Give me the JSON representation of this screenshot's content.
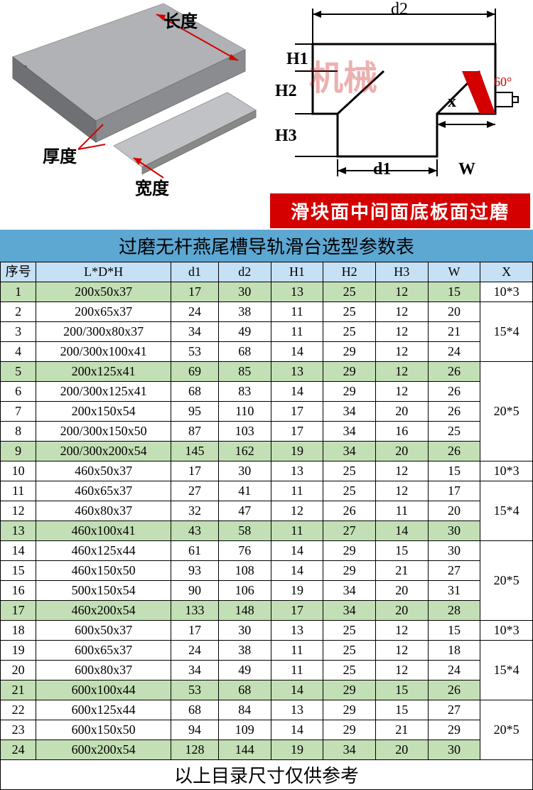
{
  "diagram_left": {
    "label_length": "长度",
    "label_thickness": "厚度",
    "label_width": "宽度"
  },
  "diagram_right": {
    "watermark": "机械",
    "label_d1": "d1",
    "label_d2": "d2",
    "label_H1": "H1",
    "label_H2": "H2",
    "label_H3": "H3",
    "label_W": "W",
    "label_x": "x",
    "label_angle": "60°",
    "red_text": "滑块面中间面底板面过磨"
  },
  "table": {
    "title": "过磨无杆燕尾槽导轨滑台选型参数表",
    "columns": [
      "序号",
      "L*D*H",
      "d1",
      "d2",
      "H1",
      "H2",
      "H3",
      "W",
      "X"
    ],
    "col_widths": [
      "45",
      "170",
      "60",
      "66",
      "66",
      "66",
      "66",
      "66",
      "66"
    ],
    "header_bg": "#c6e0f5",
    "row_green": "#c3dfb5",
    "row_white": "#ffffff",
    "rows": [
      {
        "n": 1,
        "ldh": "200x50x37",
        "d1": "17",
        "d2": "30",
        "H1": "13",
        "H2": "25",
        "H3": "12",
        "W": "15",
        "X": "10*3",
        "g": 1,
        "xspan": 1
      },
      {
        "n": 2,
        "ldh": "200x65x37",
        "d1": "24",
        "d2": "38",
        "H1": "11",
        "H2": "25",
        "H3": "12",
        "W": "20",
        "X": "15*4",
        "g": 0,
        "xspan": 3
      },
      {
        "n": 3,
        "ldh": "200/300x80x37",
        "d1": "34",
        "d2": "49",
        "H1": "11",
        "H2": "25",
        "H3": "12",
        "W": "21",
        "g": 0
      },
      {
        "n": 4,
        "ldh": "200/300x100x41",
        "d1": "53",
        "d2": "68",
        "H1": "14",
        "H2": "29",
        "H3": "12",
        "W": "24",
        "g": 0
      },
      {
        "n": 5,
        "ldh": "200x125x41",
        "d1": "69",
        "d2": "85",
        "H1": "13",
        "H2": "29",
        "H3": "12",
        "W": "26",
        "X": "20*5",
        "g": 1,
        "xspan": 5
      },
      {
        "n": 6,
        "ldh": "200/300x125x41",
        "d1": "68",
        "d2": "83",
        "H1": "14",
        "H2": "29",
        "H3": "12",
        "W": "26",
        "g": 0
      },
      {
        "n": 7,
        "ldh": "200x150x54",
        "d1": "95",
        "d2": "110",
        "H1": "17",
        "H2": "34",
        "H3": "20",
        "W": "26",
        "g": 0
      },
      {
        "n": 8,
        "ldh": "200/300x150x50",
        "d1": "87",
        "d2": "103",
        "H1": "17",
        "H2": "34",
        "H3": "16",
        "W": "25",
        "g": 0
      },
      {
        "n": 9,
        "ldh": "200/300x200x54",
        "d1": "145",
        "d2": "162",
        "H1": "19",
        "H2": "34",
        "H3": "20",
        "W": "26",
        "g": 1
      },
      {
        "n": 10,
        "ldh": "460x50x37",
        "d1": "17",
        "d2": "30",
        "H1": "13",
        "H2": "25",
        "H3": "12",
        "W": "15",
        "X": "10*3",
        "g": 0,
        "xspan": 1
      },
      {
        "n": 11,
        "ldh": "460x65x37",
        "d1": "27",
        "d2": "41",
        "H1": "11",
        "H2": "25",
        "H3": "12",
        "W": "17",
        "X": "15*4",
        "g": 0,
        "xspan": 3
      },
      {
        "n": 12,
        "ldh": "460x80x37",
        "d1": "32",
        "d2": "47",
        "H1": "12",
        "H2": "26",
        "H3": "11",
        "W": "20",
        "g": 0
      },
      {
        "n": 13,
        "ldh": "460x100x41",
        "d1": "43",
        "d2": "58",
        "H1": "11",
        "H2": "27",
        "H3": "14",
        "W": "30",
        "g": 1
      },
      {
        "n": 14,
        "ldh": "460x125x44",
        "d1": "61",
        "d2": "76",
        "H1": "14",
        "H2": "29",
        "H3": "15",
        "W": "30",
        "X": "20*5",
        "g": 0,
        "xspan": 4
      },
      {
        "n": 15,
        "ldh": "460x150x50",
        "d1": "93",
        "d2": "108",
        "H1": "14",
        "H2": "29",
        "H3": "21",
        "W": "27",
        "g": 0
      },
      {
        "n": 16,
        "ldh": "500x150x54",
        "d1": "90",
        "d2": "106",
        "H1": "19",
        "H2": "34",
        "H3": "20",
        "W": "31",
        "g": 0
      },
      {
        "n": 17,
        "ldh": "460x200x54",
        "d1": "133",
        "d2": "148",
        "H1": "17",
        "H2": "34",
        "H3": "20",
        "W": "28",
        "g": 1
      },
      {
        "n": 18,
        "ldh": "600x50x37",
        "d1": "17",
        "d2": "30",
        "H1": "13",
        "H2": "25",
        "H3": "12",
        "W": "15",
        "X": "10*3",
        "g": 0,
        "xspan": 1
      },
      {
        "n": 19,
        "ldh": "600x65x37",
        "d1": "24",
        "d2": "38",
        "H1": "11",
        "H2": "25",
        "H3": "12",
        "W": "18",
        "X": "15*4",
        "g": 0,
        "xspan": 3
      },
      {
        "n": 20,
        "ldh": "600x80x37",
        "d1": "34",
        "d2": "49",
        "H1": "11",
        "H2": "25",
        "H3": "12",
        "W": "24",
        "g": 0
      },
      {
        "n": 21,
        "ldh": "600x100x44",
        "d1": "53",
        "d2": "68",
        "H1": "14",
        "H2": "29",
        "H3": "15",
        "W": "26",
        "g": 1
      },
      {
        "n": 22,
        "ldh": "600x125x44",
        "d1": "68",
        "d2": "84",
        "H1": "13",
        "H2": "29",
        "H3": "15",
        "W": "27",
        "X": "20*5",
        "g": 0,
        "xspan": 3
      },
      {
        "n": 23,
        "ldh": "600x150x50",
        "d1": "94",
        "d2": "109",
        "H1": "14",
        "H2": "29",
        "H3": "21",
        "W": "29",
        "g": 0
      },
      {
        "n": 24,
        "ldh": "600x200x54",
        "d1": "128",
        "d2": "144",
        "H1": "19",
        "H2": "34",
        "H3": "20",
        "W": "30",
        "g": 1
      }
    ],
    "footer": "以上目录尺寸仅供参考"
  }
}
